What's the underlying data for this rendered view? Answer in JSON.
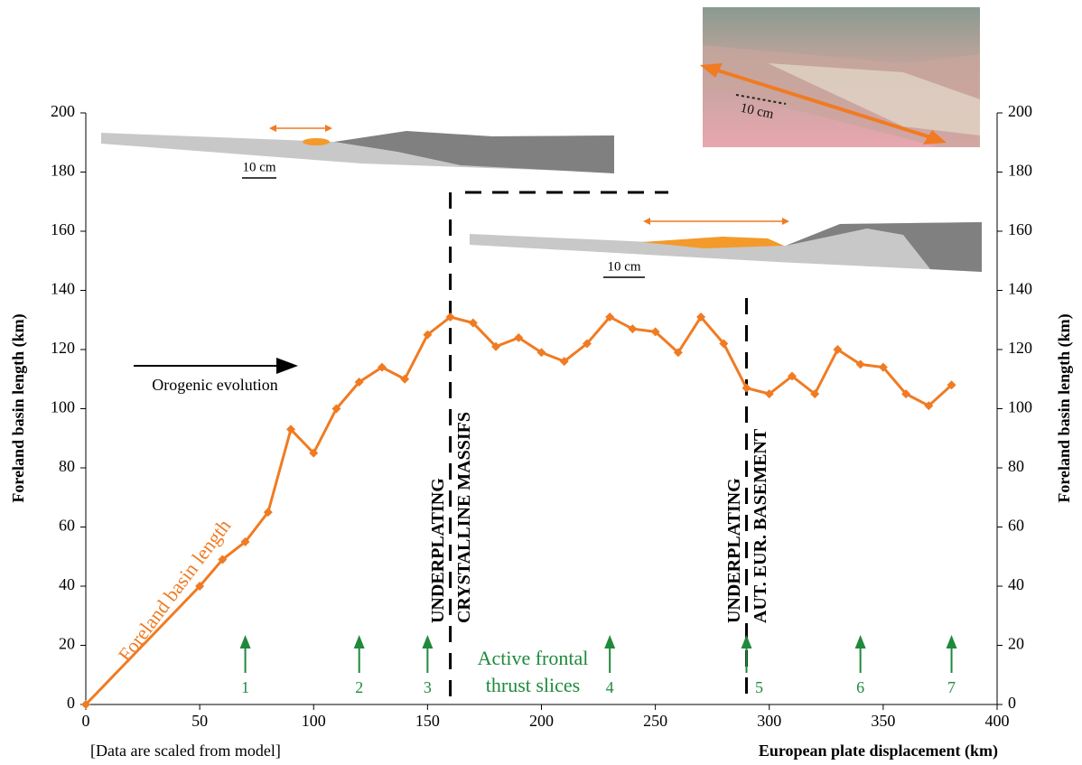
{
  "chart_data": {
    "type": "line",
    "x_label": "European plate displacement (km)",
    "y_label": "Foreland basin length (km)",
    "y2_label": "Foreland basin length (km)",
    "note": "[Data are scaled from model]",
    "orogenic_evolution": "Orogenic evolution",
    "scale_label": "10 cm",
    "x": [
      0,
      50,
      60,
      70,
      80,
      90,
      100,
      110,
      120,
      130,
      140,
      150,
      160,
      170,
      180,
      190,
      200,
      210,
      220,
      230,
      240,
      250,
      260,
      270,
      280,
      290,
      300,
      310,
      320,
      330,
      340,
      350,
      360,
      370,
      380
    ],
    "series": [
      {
        "name": "Foreland basin length",
        "color": "#f07b22",
        "values": [
          0,
          40,
          49,
          55,
          65,
          93,
          85,
          100,
          109,
          114,
          110,
          125,
          131,
          129,
          121,
          124,
          119,
          116,
          122,
          131,
          127,
          126,
          119,
          131,
          122,
          107,
          105,
          111,
          105,
          120,
          115,
          114,
          105,
          101,
          108
        ]
      }
    ],
    "xlim": [
      0,
      400
    ],
    "xticks": [
      0,
      50,
      100,
      150,
      200,
      250,
      300,
      350,
      400
    ],
    "ylim": [
      0,
      200
    ],
    "yticks": [
      0,
      20,
      40,
      60,
      80,
      100,
      120,
      140,
      160,
      180,
      200
    ],
    "y2lim": [
      0,
      200
    ],
    "y2ticks": [
      0,
      20,
      40,
      60,
      80,
      100,
      120,
      140,
      160,
      180,
      200
    ],
    "phases": [
      {
        "x": 160,
        "lines": [
          "UNDERPLATING",
          "CRYSTALLINE MASSIFS"
        ]
      },
      {
        "x": 290,
        "lines": [
          "UNDERPLATING",
          "AUT. EUR. BASEMENT"
        ]
      }
    ],
    "thrust_slices": {
      "label_lines": [
        "Active frontal",
        "thrust slices"
      ],
      "color": "#1f8a3c",
      "x": [
        70,
        120,
        150,
        230,
        290,
        340,
        380
      ],
      "labels": [
        "1",
        "2",
        "3",
        "4",
        "5",
        "6",
        "7"
      ]
    }
  }
}
